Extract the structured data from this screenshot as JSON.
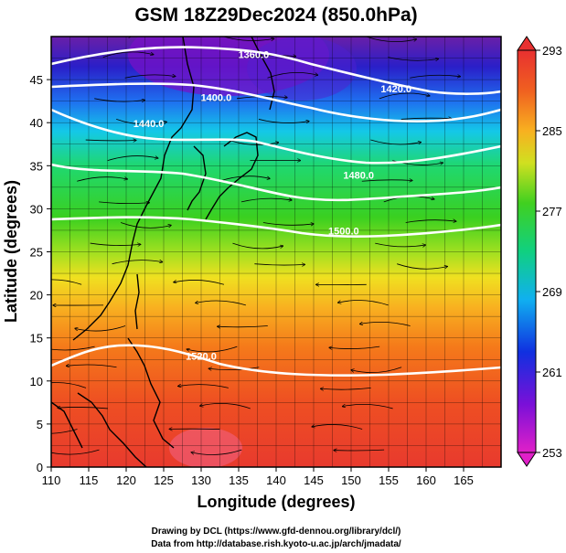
{
  "title": "GSM 18Z29Dec2024 (850.0hPa)",
  "x_axis": {
    "label": "Longitude (degrees)",
    "ticks": [
      "110",
      "115",
      "120",
      "125",
      "130",
      "135",
      "140",
      "145",
      "150",
      "155",
      "160",
      "165"
    ],
    "range": [
      110,
      170
    ]
  },
  "y_axis": {
    "label": "Latitude  (degrees)",
    "ticks": [
      "0",
      "5",
      "10",
      "15",
      "20",
      "25",
      "30",
      "35",
      "40",
      "45"
    ],
    "range": [
      0,
      50
    ]
  },
  "colorbar": {
    "labels": [
      "293",
      "285",
      "277",
      "269",
      "261",
      "253"
    ],
    "range": [
      253,
      293
    ]
  },
  "contour_labels": [
    {
      "text": "1360.0",
      "lon": 137,
      "lat": 47.5
    },
    {
      "text": "1400.0",
      "lon": 132,
      "lat": 42.5
    },
    {
      "text": "1440.0",
      "lon": 123,
      "lat": 39.5
    },
    {
      "text": "1420.0",
      "lon": 156,
      "lat": 43.5
    },
    {
      "text": "1480.0",
      "lon": 151,
      "lat": 33.5
    },
    {
      "text": "1500.0",
      "lon": 149,
      "lat": 27
    },
    {
      "text": "1520.0",
      "lon": 130,
      "lat": 12.5
    }
  ],
  "credits": {
    "line1": "Drawing by DCL (https://www.gfd-dennou.org/library/dcl/)",
    "line2": "Data from http://database.rish.kyoto-u.ac.jp/arch/jmadata/"
  },
  "colors": {
    "warm": "#e8402a",
    "cold": "#7a1fb0",
    "contour": "#ffffff",
    "streamline": "#000000"
  }
}
